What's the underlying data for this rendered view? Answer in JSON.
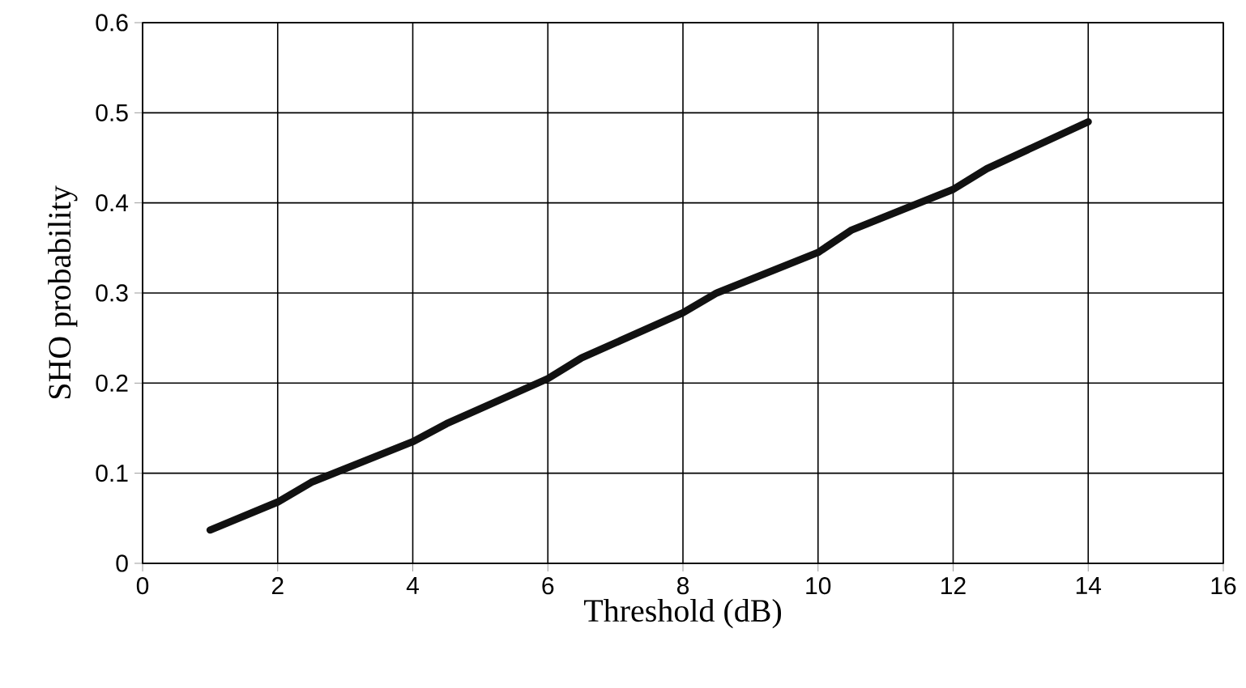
{
  "chart_data": {
    "type": "line",
    "xlabel": "Threshold (dB)",
    "ylabel": "SHO probability",
    "x": [
      1,
      2,
      2.5,
      4,
      4.5,
      6,
      6.5,
      8,
      8.5,
      10,
      10.5,
      12,
      12.5,
      14
    ],
    "series": [
      {
        "color": "#111111",
        "values": [
          0.037,
          0.068,
          0.09,
          0.135,
          0.155,
          0.205,
          0.228,
          0.278,
          0.3,
          0.345,
          0.37,
          0.415,
          0.438,
          0.49
        ]
      }
    ],
    "xlim": [
      0,
      16
    ],
    "xticks": [
      0,
      2,
      4,
      6,
      8,
      10,
      12,
      14,
      16
    ],
    "ylim": [
      0,
      0.6
    ],
    "yticks": [
      0,
      0.1,
      0.2,
      0.3,
      0.4,
      0.5,
      0.6
    ],
    "grid": true,
    "marker": "none",
    "line_style": "solid"
  }
}
